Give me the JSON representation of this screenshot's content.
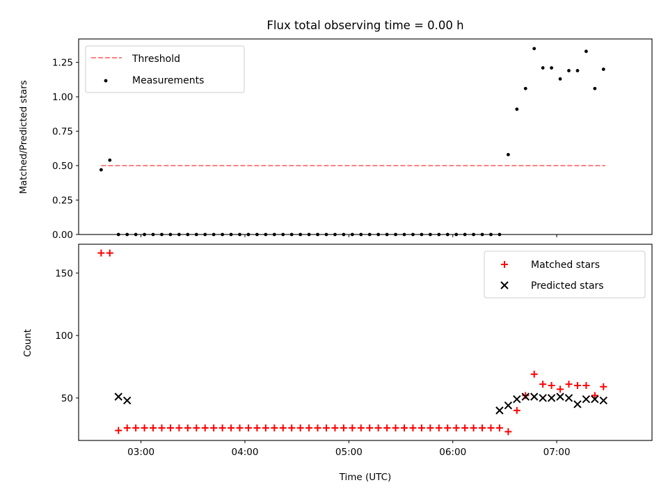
{
  "figure": {
    "title": "Flux total observing time = 0.00 h",
    "xlabel": "Time (UTC)"
  },
  "chart_data": [
    {
      "type": "scatter",
      "ylabel": "Matched/Predicted stars",
      "ylim": [
        0,
        1.42
      ],
      "yticks": [
        "0.00",
        "0.25",
        "0.50",
        "0.75",
        "1.00",
        "1.25"
      ],
      "legend_position": "top-left",
      "series": [
        {
          "name": "Threshold",
          "style": "dashed-line",
          "color": "#ff7f7f",
          "x": [
            "02:37",
            "07:28"
          ],
          "y": [
            0.5,
            0.5
          ]
        },
        {
          "name": "Measurements",
          "style": "dot",
          "color": "#000000",
          "x": [
            "02:37",
            "02:42",
            "02:47",
            "02:52",
            "02:57",
            "03:02",
            "03:07",
            "03:12",
            "03:17",
            "03:22",
            "03:27",
            "03:32",
            "03:37",
            "03:42",
            "03:47",
            "03:52",
            "03:57",
            "04:02",
            "04:07",
            "04:12",
            "04:17",
            "04:22",
            "04:27",
            "04:32",
            "04:37",
            "04:42",
            "04:47",
            "04:52",
            "04:57",
            "05:02",
            "05:07",
            "05:12",
            "05:17",
            "05:22",
            "05:27",
            "05:32",
            "05:37",
            "05:42",
            "05:47",
            "05:52",
            "05:57",
            "06:02",
            "06:07",
            "06:12",
            "06:17",
            "06:22",
            "06:27",
            "06:32",
            "06:37",
            "06:42",
            "06:47",
            "06:52",
            "06:57",
            "07:02",
            "07:07",
            "07:12",
            "07:17",
            "07:22",
            "07:27"
          ],
          "y": [
            0.47,
            0.54,
            0,
            0,
            0,
            0,
            0,
            0,
            0,
            0,
            0,
            0,
            0,
            0,
            0,
            0,
            0,
            0,
            0,
            0,
            0,
            0,
            0,
            0,
            0,
            0,
            0,
            0,
            0,
            0,
            0,
            0,
            0,
            0,
            0,
            0,
            0,
            0,
            0,
            0,
            0,
            0,
            0,
            0,
            0,
            0,
            0,
            0.58,
            0.91,
            1.06,
            1.35,
            1.21,
            1.21,
            1.13,
            1.19,
            1.19,
            1.33,
            1.06,
            1.2
          ]
        }
      ]
    },
    {
      "type": "scatter",
      "ylabel": "Count",
      "ylim": [
        16,
        173
      ],
      "yticks": [
        "50",
        "100",
        "150"
      ],
      "legend_position": "top-right",
      "series": [
        {
          "name": "Matched stars",
          "style": "plus",
          "color": "#ff0000",
          "x": [
            "02:37",
            "02:42",
            "02:47",
            "02:52",
            "02:57",
            "03:02",
            "03:07",
            "03:12",
            "03:17",
            "03:22",
            "03:27",
            "03:32",
            "03:37",
            "03:42",
            "03:47",
            "03:52",
            "03:57",
            "04:02",
            "04:07",
            "04:12",
            "04:17",
            "04:22",
            "04:27",
            "04:32",
            "04:37",
            "04:42",
            "04:47",
            "04:52",
            "04:57",
            "05:02",
            "05:07",
            "05:12",
            "05:17",
            "05:22",
            "05:27",
            "05:32",
            "05:37",
            "05:42",
            "05:47",
            "05:52",
            "05:57",
            "06:02",
            "06:07",
            "06:12",
            "06:17",
            "06:22",
            "06:27",
            "06:32",
            "06:37",
            "06:42",
            "06:47",
            "06:52",
            "06:57",
            "07:02",
            "07:07",
            "07:12",
            "07:17",
            "07:22",
            "07:27"
          ],
          "y": [
            166,
            166,
            24,
            26,
            26,
            26,
            26,
            26,
            26,
            26,
            26,
            26,
            26,
            26,
            26,
            26,
            26,
            26,
            26,
            26,
            26,
            26,
            26,
            26,
            26,
            26,
            26,
            26,
            26,
            26,
            26,
            26,
            26,
            26,
            26,
            26,
            26,
            26,
            26,
            26,
            26,
            26,
            26,
            26,
            26,
            26,
            26,
            23,
            40,
            52,
            69,
            61,
            60,
            57,
            61,
            60,
            60,
            52,
            59
          ]
        },
        {
          "name": "Predicted stars",
          "style": "x",
          "color": "#000000",
          "x": [
            "02:47",
            "02:52",
            "06:27",
            "06:32",
            "06:37",
            "06:42",
            "06:47",
            "06:52",
            "06:57",
            "07:02",
            "07:07",
            "07:12",
            "07:17",
            "07:22",
            "07:27"
          ],
          "y": [
            51,
            48,
            40,
            44,
            49,
            51,
            51,
            50,
            50,
            51,
            50,
            45,
            49,
            49,
            48
          ]
        }
      ]
    }
  ],
  "xaxis": {
    "range": [
      "02:24",
      "07:55"
    ],
    "ticks": [
      "03:00",
      "04:00",
      "05:00",
      "06:00",
      "07:00"
    ]
  }
}
